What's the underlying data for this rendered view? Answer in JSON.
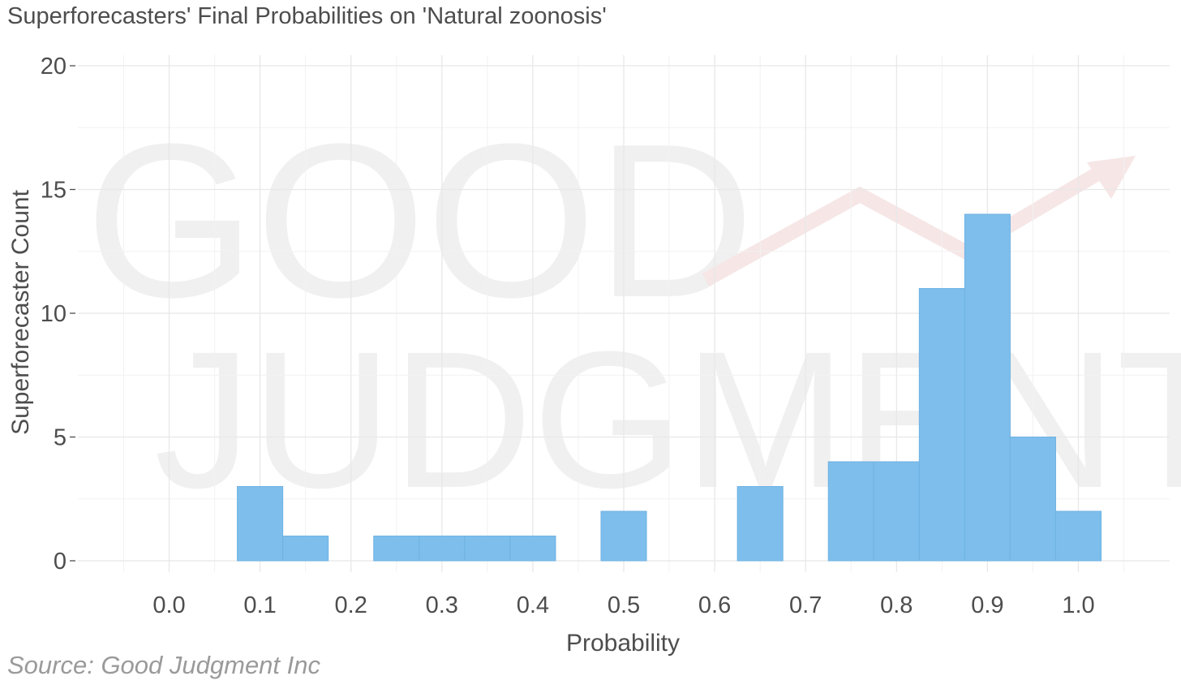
{
  "title": "Superforecasters' Final Probabilities on 'Natural zoonosis'",
  "source": "Source: Good Judgment Inc",
  "watermark": {
    "line1": "GOOD",
    "line2": "JUDGMENT",
    "arrow_color": "#f6e6e6"
  },
  "chart_data": {
    "type": "bar",
    "xlabel": "Probability",
    "ylabel": "Superforecaster Count",
    "xlim": [
      -0.1,
      1.1
    ],
    "ylim": [
      0,
      20
    ],
    "x_ticks": [
      "0.0",
      "0.1",
      "0.2",
      "0.3",
      "0.4",
      "0.5",
      "0.6",
      "0.7",
      "0.8",
      "0.9",
      "1.0"
    ],
    "y_ticks": [
      "0",
      "5",
      "10",
      "15",
      "20"
    ],
    "bin_width": 0.05,
    "bar_color": "#7dbeec",
    "bins": [
      {
        "x": 0.1,
        "count": 3
      },
      {
        "x": 0.15,
        "count": 1
      },
      {
        "x": 0.25,
        "count": 1
      },
      {
        "x": 0.3,
        "count": 1
      },
      {
        "x": 0.35,
        "count": 1
      },
      {
        "x": 0.4,
        "count": 1
      },
      {
        "x": 0.5,
        "count": 2
      },
      {
        "x": 0.65,
        "count": 3
      },
      {
        "x": 0.75,
        "count": 4
      },
      {
        "x": 0.8,
        "count": 4
      },
      {
        "x": 0.85,
        "count": 11
      },
      {
        "x": 0.9,
        "count": 14
      },
      {
        "x": 0.95,
        "count": 5
      },
      {
        "x": 1.0,
        "count": 2
      }
    ]
  }
}
